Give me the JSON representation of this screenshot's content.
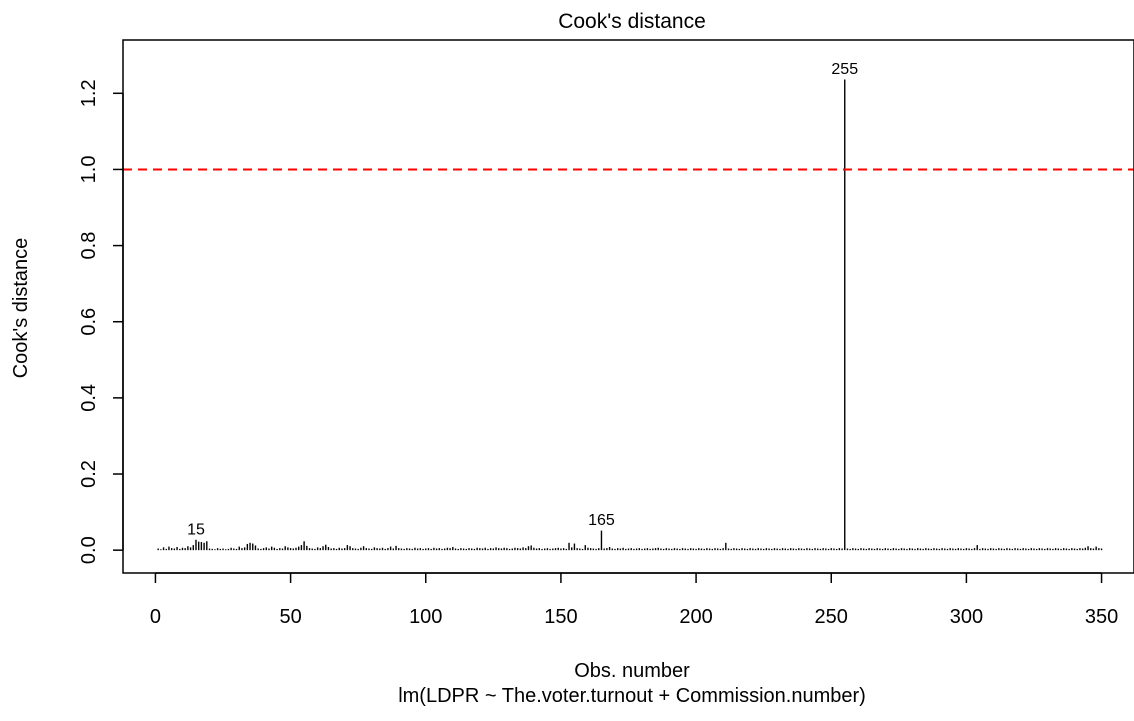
{
  "chart_data": {
    "type": "bar",
    "title": "Cook's distance",
    "xlabel": "Obs. number",
    "subtitle": "lm(LDPR ~ The.voter.turnout + Commission.number)",
    "ylabel": "Cook's distance",
    "xlim": [
      -12,
      362
    ],
    "ylim": [
      -0.06,
      1.34
    ],
    "x_ticks": [
      0,
      50,
      100,
      150,
      200,
      250,
      300,
      350
    ],
    "x_tick_labels": [
      "0",
      "50",
      "100",
      "150",
      "200",
      "250",
      "300",
      "350"
    ],
    "y_ticks": [
      0.0,
      0.2,
      0.4,
      0.6,
      0.8,
      1.0,
      1.2
    ],
    "y_tick_labels": [
      "0.0",
      "0.2",
      "0.4",
      "0.6",
      "0.8",
      "1.0",
      "1.2"
    ],
    "n_obs": 350,
    "threshold": {
      "y": 1.0,
      "color": "#ff0000",
      "style": "dashed"
    },
    "labeled_points": [
      {
        "x": 15,
        "y": 0.026,
        "label": "15"
      },
      {
        "x": 165,
        "y": 0.05,
        "label": "165"
      },
      {
        "x": 255,
        "y": 1.235,
        "label": "255"
      }
    ],
    "values": [
      0.003,
      0.001,
      0.006,
      0.002,
      0.008,
      0.004,
      0.003,
      0.007,
      0.002,
      0.005,
      0.004,
      0.009,
      0.006,
      0.012,
      0.026,
      0.021,
      0.02,
      0.018,
      0.022,
      0.003,
      0.002,
      0.001,
      0.004,
      0.002,
      0.003,
      0.001,
      0.002,
      0.005,
      0.003,
      0.002,
      0.008,
      0.004,
      0.006,
      0.015,
      0.018,
      0.016,
      0.011,
      0.003,
      0.002,
      0.004,
      0.006,
      0.003,
      0.008,
      0.005,
      0.002,
      0.004,
      0.003,
      0.009,
      0.006,
      0.004,
      0.003,
      0.005,
      0.008,
      0.012,
      0.022,
      0.01,
      0.004,
      0.003,
      0.002,
      0.006,
      0.004,
      0.009,
      0.013,
      0.007,
      0.003,
      0.004,
      0.002,
      0.005,
      0.003,
      0.004,
      0.012,
      0.009,
      0.004,
      0.003,
      0.002,
      0.005,
      0.009,
      0.004,
      0.003,
      0.002,
      0.006,
      0.004,
      0.003,
      0.005,
      0.002,
      0.004,
      0.008,
      0.003,
      0.01,
      0.004,
      0.003,
      0.002,
      0.004,
      0.003,
      0.002,
      0.005,
      0.003,
      0.004,
      0.002,
      0.003,
      0.004,
      0.002,
      0.005,
      0.003,
      0.004,
      0.002,
      0.003,
      0.005,
      0.004,
      0.007,
      0.003,
      0.002,
      0.004,
      0.003,
      0.002,
      0.004,
      0.003,
      0.002,
      0.005,
      0.004,
      0.003,
      0.005,
      0.002,
      0.004,
      0.003,
      0.006,
      0.004,
      0.003,
      0.005,
      0.004,
      0.002,
      0.003,
      0.005,
      0.004,
      0.003,
      0.006,
      0.004,
      0.009,
      0.011,
      0.005,
      0.003,
      0.004,
      0.002,
      0.003,
      0.004,
      0.002,
      0.003,
      0.004,
      0.005,
      0.003,
      0.004,
      0.002,
      0.018,
      0.006,
      0.016,
      0.004,
      0.003,
      0.002,
      0.012,
      0.005,
      0.004,
      0.003,
      0.002,
      0.004,
      0.05,
      0.003,
      0.004,
      0.007,
      0.003,
      0.002,
      0.004,
      0.003,
      0.005,
      0.002,
      0.003,
      0.004,
      0.002,
      0.003,
      0.004,
      0.002,
      0.003,
      0.004,
      0.002,
      0.003,
      0.004,
      0.005,
      0.003,
      0.002,
      0.004,
      0.003,
      0.002,
      0.004,
      0.003,
      0.002,
      0.004,
      0.003,
      0.002,
      0.004,
      0.003,
      0.002,
      0.004,
      0.003,
      0.002,
      0.004,
      0.003,
      0.002,
      0.004,
      0.003,
      0.002,
      0.004,
      0.018,
      0.003,
      0.002,
      0.004,
      0.003,
      0.002,
      0.004,
      0.003,
      0.002,
      0.004,
      0.003,
      0.002,
      0.004,
      0.003,
      0.002,
      0.004,
      0.003,
      0.002,
      0.004,
      0.003,
      0.002,
      0.004,
      0.003,
      0.002,
      0.004,
      0.003,
      0.002,
      0.004,
      0.003,
      0.002,
      0.004,
      0.003,
      0.002,
      0.004,
      0.003,
      0.002,
      0.004,
      0.003,
      0.002,
      0.004,
      0.003,
      0.002,
      0.004,
      0.003,
      1.235,
      0.003,
      0.002,
      0.004,
      0.003,
      0.002,
      0.004,
      0.003,
      0.002,
      0.004,
      0.003,
      0.002,
      0.004,
      0.003,
      0.002,
      0.004,
      0.003,
      0.002,
      0.004,
      0.003,
      0.002,
      0.004,
      0.003,
      0.002,
      0.004,
      0.003,
      0.002,
      0.004,
      0.003,
      0.002,
      0.004,
      0.003,
      0.002,
      0.004,
      0.003,
      0.002,
      0.004,
      0.003,
      0.002,
      0.004,
      0.003,
      0.002,
      0.004,
      0.003,
      0.002,
      0.004,
      0.003,
      0.002,
      0.004,
      0.012,
      0.002,
      0.004,
      0.003,
      0.002,
      0.004,
      0.003,
      0.002,
      0.004,
      0.003,
      0.002,
      0.004,
      0.003,
      0.002,
      0.004,
      0.003,
      0.002,
      0.004,
      0.003,
      0.002,
      0.004,
      0.003,
      0.002,
      0.004,
      0.003,
      0.002,
      0.004,
      0.003,
      0.002,
      0.004,
      0.003,
      0.002,
      0.004,
      0.003,
      0.002,
      0.004,
      0.003,
      0.002,
      0.004,
      0.003,
      0.005,
      0.009,
      0.004,
      0.003,
      0.008,
      0.004,
      0.003
    ]
  }
}
